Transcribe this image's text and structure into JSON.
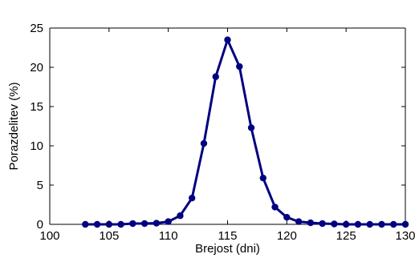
{
  "chart_data": {
    "type": "line",
    "title": "",
    "xlabel": "Brejost (dni)",
    "ylabel": "Porazdelitev (%)",
    "xlim": [
      100,
      130
    ],
    "ylim": [
      0,
      25
    ],
    "x_ticks": [
      100,
      105,
      110,
      115,
      120,
      125,
      130
    ],
    "y_ticks": [
      0,
      5,
      10,
      15,
      20,
      25
    ],
    "x_tick_labels": [
      "100",
      "105",
      "110",
      "115",
      "120",
      "125",
      "130"
    ],
    "y_tick_labels": [
      "0",
      "5",
      "10",
      "15",
      "20",
      "25"
    ],
    "grid": false,
    "legend": "none",
    "series": [
      {
        "color": "#000080",
        "marker": "circle",
        "x": [
          103,
          104,
          105,
          106,
          107,
          108,
          109,
          110,
          111,
          112,
          113,
          114,
          115,
          116,
          117,
          118,
          119,
          120,
          121,
          122,
          123,
          124,
          125,
          126,
          127,
          128,
          129,
          130
        ],
        "y": [
          0,
          0,
          0,
          0,
          0.1,
          0.1,
          0.15,
          0.35,
          1.1,
          3.35,
          10.3,
          18.8,
          23.5,
          20.1,
          12.3,
          5.9,
          2.2,
          0.9,
          0.35,
          0.2,
          0.1,
          0.05,
          0,
          0,
          0,
          0,
          0,
          0
        ]
      }
    ]
  }
}
